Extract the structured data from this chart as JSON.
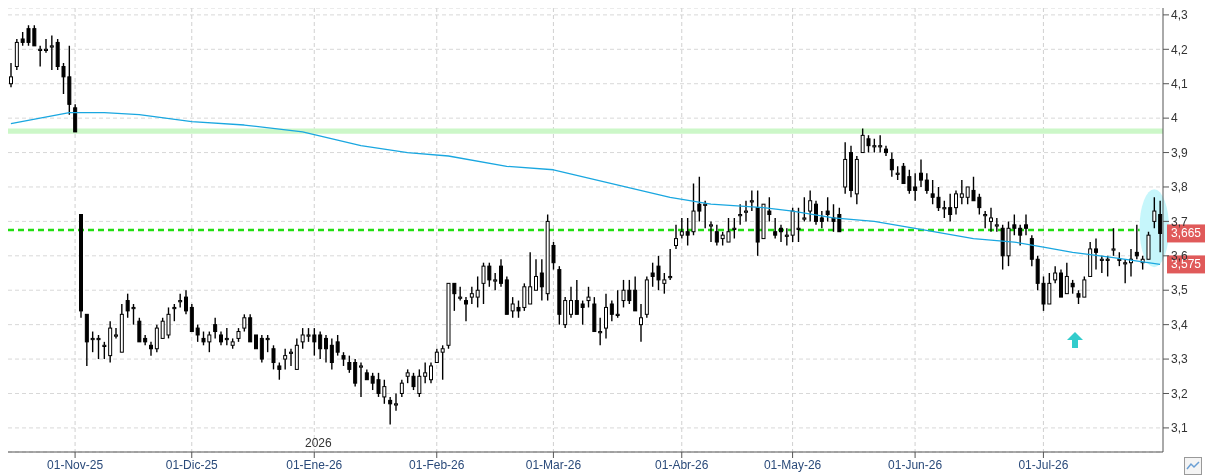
{
  "chart_data": {
    "type": "candlestick",
    "categories": [
      null,
      null,
      null,
      null,
      null,
      null,
      null,
      null,
      null,
      null,
      null,
      "01-Nov-25",
      null,
      null,
      null,
      null,
      null,
      null,
      null,
      null,
      null,
      null,
      null,
      null,
      null,
      null,
      null,
      null,
      null,
      null,
      null,
      "01-Dic-25",
      null,
      null,
      null,
      null,
      null,
      null,
      null,
      null,
      null,
      null,
      null,
      null,
      null,
      null,
      null,
      null,
      null,
      null,
      null,
      null,
      "01-Ene-26",
      null,
      null,
      null,
      null,
      null,
      null,
      null,
      null,
      null,
      null,
      null,
      null,
      null,
      null,
      null,
      null,
      null,
      null,
      null,
      null,
      "01-Feb-26",
      null,
      null,
      null,
      null,
      null,
      null,
      null,
      null,
      null,
      null,
      null,
      null,
      null,
      null,
      null,
      null,
      null,
      null,
      null,
      "01-Mar-26",
      null,
      null,
      null,
      null,
      null,
      null,
      null,
      null,
      null,
      null,
      null,
      null,
      null,
      null,
      null,
      null,
      null,
      null,
      null,
      null,
      null,
      "01-Abr-26",
      null,
      null,
      null,
      null,
      null,
      null,
      null,
      null,
      null,
      null,
      null,
      null,
      null,
      null,
      null,
      null,
      null,
      null,
      "01-May-26",
      null,
      null,
      null,
      null,
      null,
      null,
      null,
      null,
      null,
      null,
      null,
      null,
      null,
      null,
      null,
      null,
      null,
      null,
      null,
      null,
      "01-Jun-26",
      null,
      null,
      null,
      null,
      null,
      null,
      null,
      null,
      null,
      null,
      null,
      null,
      null,
      null,
      null,
      null,
      null,
      null,
      null,
      null,
      null,
      "01-Jul-26",
      null,
      null,
      null,
      null,
      null,
      null,
      null,
      null,
      null,
      null,
      null,
      null,
      null,
      null,
      null,
      null,
      null,
      null,
      null,
      null
    ],
    "color": "#000000",
    "ohlc": [
      [
        4.1,
        4.16,
        4.09,
        4.12
      ],
      [
        4.15,
        4.23,
        4.14,
        4.22
      ],
      [
        4.23,
        4.25,
        4.21,
        4.22
      ],
      [
        4.26,
        4.27,
        4.21,
        4.22
      ],
      [
        4.26,
        4.27,
        4.21,
        4.21
      ],
      [
        4.2,
        4.21,
        4.15,
        4.2
      ],
      [
        4.2,
        4.23,
        4.19,
        4.2
      ],
      [
        4.21,
        4.24,
        4.14,
        4.21
      ],
      [
        4.22,
        4.23,
        4.14,
        4.15
      ],
      [
        4.15,
        4.16,
        4.07,
        4.12
      ],
      [
        4.12,
        4.21,
        4.01,
        4.04
      ],
      [
        4.03,
        4.04,
        3.96,
        3.96
      ],
      [
        3.72,
        3.72,
        3.42,
        3.44
      ],
      [
        3.43,
        3.43,
        3.28,
        3.35
      ],
      [
        3.36,
        3.38,
        3.32,
        3.36
      ],
      [
        3.36,
        3.37,
        3.3,
        3.36
      ],
      [
        3.34,
        3.35,
        3.3,
        3.34
      ],
      [
        3.31,
        3.41,
        3.29,
        3.39
      ],
      [
        3.37,
        3.39,
        3.36,
        3.37
      ],
      [
        3.32,
        3.46,
        3.32,
        3.43
      ],
      [
        3.47,
        3.49,
        3.42,
        3.44
      ],
      [
        3.45,
        3.46,
        3.4,
        3.45
      ],
      [
        3.41,
        3.42,
        3.35,
        3.35
      ],
      [
        3.36,
        3.37,
        3.34,
        3.35
      ],
      [
        3.34,
        3.35,
        3.31,
        3.33
      ],
      [
        3.33,
        3.4,
        3.32,
        3.39
      ],
      [
        3.36,
        3.42,
        3.36,
        3.41
      ],
      [
        3.37,
        3.45,
        3.36,
        3.43
      ],
      [
        3.45,
        3.46,
        3.41,
        3.45
      ],
      [
        3.47,
        3.49,
        3.45,
        3.47
      ],
      [
        3.48,
        3.5,
        3.43,
        3.44
      ],
      [
        3.45,
        3.46,
        3.38,
        3.38
      ],
      [
        3.39,
        3.4,
        3.35,
        3.37
      ],
      [
        3.36,
        3.38,
        3.34,
        3.35
      ],
      [
        3.35,
        3.38,
        3.32,
        3.37
      ],
      [
        3.4,
        3.42,
        3.36,
        3.38
      ],
      [
        3.37,
        3.38,
        3.34,
        3.35
      ],
      [
        3.36,
        3.39,
        3.34,
        3.36
      ],
      [
        3.34,
        3.36,
        3.33,
        3.35
      ],
      [
        3.36,
        3.39,
        3.35,
        3.38
      ],
      [
        3.39,
        3.43,
        3.38,
        3.42
      ],
      [
        3.42,
        3.43,
        3.35,
        3.35
      ],
      [
        3.37,
        3.37,
        3.33,
        3.33
      ],
      [
        3.36,
        3.37,
        3.29,
        3.3
      ],
      [
        3.36,
        3.37,
        3.32,
        3.36
      ],
      [
        3.33,
        3.34,
        3.27,
        3.29
      ],
      [
        3.28,
        3.29,
        3.24,
        3.27
      ],
      [
        3.3,
        3.33,
        3.27,
        3.31
      ],
      [
        3.32,
        3.33,
        3.28,
        3.32
      ],
      [
        3.27,
        3.36,
        3.27,
        3.34
      ],
      [
        3.35,
        3.39,
        3.33,
        3.37
      ],
      [
        3.37,
        3.39,
        3.35,
        3.37
      ],
      [
        3.37,
        3.39,
        3.31,
        3.35
      ],
      [
        3.37,
        3.38,
        3.3,
        3.33
      ],
      [
        3.36,
        3.37,
        3.29,
        3.33
      ],
      [
        3.34,
        3.36,
        3.27,
        3.29
      ],
      [
        3.35,
        3.37,
        3.31,
        3.32
      ],
      [
        3.31,
        3.32,
        3.28,
        3.3
      ],
      [
        3.29,
        3.31,
        3.26,
        3.27
      ],
      [
        3.29,
        3.3,
        3.22,
        3.23
      ],
      [
        3.28,
        3.29,
        3.19,
        3.28
      ],
      [
        3.26,
        3.27,
        3.24,
        3.24
      ],
      [
        3.25,
        3.26,
        3.21,
        3.23
      ],
      [
        3.24,
        3.26,
        3.19,
        3.2
      ],
      [
        3.19,
        3.24,
        3.17,
        3.22
      ],
      [
        3.18,
        3.19,
        3.11,
        3.17
      ],
      [
        3.17,
        3.2,
        3.15,
        3.17
      ],
      [
        3.2,
        3.24,
        3.19,
        3.23
      ],
      [
        3.25,
        3.27,
        3.23,
        3.26
      ],
      [
        3.25,
        3.26,
        3.21,
        3.22
      ],
      [
        3.2,
        3.27,
        3.19,
        3.25
      ],
      [
        3.25,
        3.29,
        3.23,
        3.26
      ],
      [
        3.24,
        3.29,
        3.23,
        3.28
      ],
      [
        3.29,
        3.33,
        3.29,
        3.32
      ],
      [
        3.32,
        3.34,
        3.24,
        3.33
      ],
      [
        3.34,
        3.52,
        3.33,
        3.52
      ],
      [
        3.52,
        3.52,
        3.44,
        3.49
      ],
      [
        3.48,
        3.51,
        3.47,
        3.48
      ],
      [
        3.47,
        3.48,
        3.41,
        3.46
      ],
      [
        3.48,
        3.51,
        3.46,
        3.49
      ],
      [
        3.48,
        3.54,
        3.45,
        3.5
      ],
      [
        3.52,
        3.58,
        3.46,
        3.57
      ],
      [
        3.57,
        3.58,
        3.51,
        3.53
      ],
      [
        3.53,
        3.55,
        3.5,
        3.53
      ],
      [
        3.57,
        3.59,
        3.51,
        3.52
      ],
      [
        3.53,
        3.54,
        3.43,
        3.43
      ],
      [
        3.44,
        3.48,
        3.42,
        3.46
      ],
      [
        3.45,
        3.47,
        3.42,
        3.44
      ],
      [
        3.45,
        3.52,
        3.44,
        3.51
      ],
      [
        3.46,
        3.61,
        3.46,
        3.51
      ],
      [
        3.5,
        3.59,
        3.5,
        3.54
      ],
      [
        3.55,
        3.59,
        3.47,
        3.51
      ],
      [
        3.49,
        3.72,
        3.47,
        3.7
      ],
      [
        3.63,
        3.64,
        3.56,
        3.58
      ],
      [
        3.56,
        3.57,
        3.4,
        3.43
      ],
      [
        3.4,
        3.48,
        3.39,
        3.47
      ],
      [
        3.43,
        3.51,
        3.42,
        3.47
      ],
      [
        3.47,
        3.53,
        3.43,
        3.43
      ],
      [
        3.46,
        3.47,
        3.4,
        3.45
      ],
      [
        3.47,
        3.51,
        3.45,
        3.48
      ],
      [
        3.46,
        3.48,
        3.38,
        3.38
      ],
      [
        3.38,
        3.42,
        3.34,
        3.38
      ],
      [
        3.39,
        3.49,
        3.36,
        3.45
      ],
      [
        3.46,
        3.47,
        3.41,
        3.43
      ],
      [
        3.43,
        3.5,
        3.42,
        3.43
      ],
      [
        3.47,
        3.53,
        3.45,
        3.5
      ],
      [
        3.5,
        3.53,
        3.46,
        3.47
      ],
      [
        3.5,
        3.54,
        3.44,
        3.44
      ],
      [
        3.4,
        3.46,
        3.35,
        3.42
      ],
      [
        3.43,
        3.54,
        3.42,
        3.53
      ],
      [
        3.55,
        3.58,
        3.51,
        3.54
      ],
      [
        3.57,
        3.6,
        3.5,
        3.53
      ],
      [
        3.52,
        3.55,
        3.49,
        3.53
      ],
      [
        3.54,
        3.62,
        3.53,
        3.54
      ],
      [
        3.63,
        3.69,
        3.62,
        3.65
      ],
      [
        3.66,
        3.71,
        3.65,
        3.67
      ],
      [
        3.67,
        3.71,
        3.63,
        3.66
      ],
      [
        3.67,
        3.81,
        3.66,
        3.73
      ],
      [
        3.75,
        3.83,
        3.7,
        3.73
      ],
      [
        3.75,
        3.76,
        3.68,
        3.75
      ],
      [
        3.69,
        3.7,
        3.64,
        3.69
      ],
      [
        3.67,
        3.69,
        3.63,
        3.64
      ],
      [
        3.65,
        3.67,
        3.63,
        3.66
      ],
      [
        3.64,
        3.71,
        3.64,
        3.67
      ],
      [
        3.68,
        3.71,
        3.65,
        3.68
      ],
      [
        3.72,
        3.75,
        3.69,
        3.72
      ],
      [
        3.73,
        3.76,
        3.7,
        3.73
      ],
      [
        3.76,
        3.79,
        3.73,
        3.76
      ],
      [
        3.74,
        3.79,
        3.6,
        3.64
      ],
      [
        3.65,
        3.75,
        3.65,
        3.75
      ],
      [
        3.73,
        3.77,
        3.7,
        3.72
      ],
      [
        3.67,
        3.71,
        3.65,
        3.66
      ],
      [
        3.68,
        3.69,
        3.64,
        3.67
      ],
      [
        3.66,
        3.68,
        3.63,
        3.66
      ],
      [
        3.66,
        3.74,
        3.64,
        3.73
      ],
      [
        3.68,
        3.74,
        3.64,
        3.68
      ],
      [
        3.71,
        3.77,
        3.7,
        3.71
      ],
      [
        3.73,
        3.79,
        3.7,
        3.76
      ],
      [
        3.75,
        3.76,
        3.69,
        3.7
      ],
      [
        3.71,
        3.73,
        3.68,
        3.7
      ],
      [
        3.73,
        3.77,
        3.7,
        3.72
      ],
      [
        3.71,
        3.75,
        3.67,
        3.7
      ],
      [
        3.72,
        3.74,
        3.67,
        3.67
      ],
      [
        3.8,
        3.93,
        3.78,
        3.88
      ],
      [
        3.9,
        3.92,
        3.77,
        3.79
      ],
      [
        3.78,
        3.89,
        3.75,
        3.88
      ],
      [
        3.9,
        3.97,
        3.9,
        3.95
      ],
      [
        3.94,
        3.95,
        3.9,
        3.92
      ],
      [
        3.92,
        3.94,
        3.9,
        3.92
      ],
      [
        3.92,
        3.95,
        3.9,
        3.92
      ],
      [
        3.91,
        3.92,
        3.89,
        3.9
      ],
      [
        3.88,
        3.9,
        3.83,
        3.85
      ],
      [
        3.84,
        3.86,
        3.82,
        3.84
      ],
      [
        3.86,
        3.87,
        3.81,
        3.81
      ],
      [
        3.83,
        3.85,
        3.78,
        3.79
      ],
      [
        3.8,
        3.84,
        3.76,
        3.79
      ],
      [
        3.84,
        3.88,
        3.8,
        3.82
      ],
      [
        3.82,
        3.84,
        3.78,
        3.79
      ],
      [
        3.78,
        3.82,
        3.75,
        3.77
      ],
      [
        3.77,
        3.8,
        3.73,
        3.74
      ],
      [
        3.74,
        3.76,
        3.71,
        3.74
      ],
      [
        3.74,
        3.78,
        3.7,
        3.72
      ],
      [
        3.74,
        3.79,
        3.72,
        3.78
      ],
      [
        3.77,
        3.82,
        3.75,
        3.78
      ],
      [
        3.77,
        3.8,
        3.75,
        3.8
      ],
      [
        3.79,
        3.83,
        3.76,
        3.76
      ],
      [
        3.77,
        3.78,
        3.72,
        3.74
      ],
      [
        3.72,
        3.73,
        3.68,
        3.72
      ],
      [
        3.7,
        3.74,
        3.67,
        3.71
      ],
      [
        3.69,
        3.71,
        3.67,
        3.69
      ],
      [
        3.68,
        3.69,
        3.56,
        3.6
      ],
      [
        3.6,
        3.7,
        3.57,
        3.68
      ],
      [
        3.69,
        3.72,
        3.66,
        3.68
      ],
      [
        3.68,
        3.69,
        3.63,
        3.66
      ],
      [
        3.69,
        3.72,
        3.66,
        3.68
      ],
      [
        3.65,
        3.66,
        3.57,
        3.59
      ],
      [
        3.59,
        3.6,
        3.5,
        3.52
      ],
      [
        3.52,
        3.54,
        3.44,
        3.46
      ],
      [
        3.46,
        3.55,
        3.46,
        3.52
      ],
      [
        3.53,
        3.57,
        3.52,
        3.55
      ],
      [
        3.55,
        3.56,
        3.48,
        3.48
      ],
      [
        3.49,
        3.58,
        3.49,
        3.54
      ],
      [
        3.52,
        3.53,
        3.49,
        3.51
      ],
      [
        3.49,
        3.5,
        3.46,
        3.48
      ],
      [
        3.48,
        3.54,
        3.48,
        3.53
      ],
      [
        3.54,
        3.64,
        3.54,
        3.62
      ],
      [
        3.62,
        3.65,
        3.56,
        3.61
      ],
      [
        3.59,
        3.6,
        3.55,
        3.59
      ],
      [
        3.59,
        3.6,
        3.54,
        3.59
      ],
      [
        3.62,
        3.68,
        3.6,
        3.62
      ],
      [
        3.59,
        3.61,
        3.57,
        3.59
      ],
      [
        3.58,
        3.59,
        3.52,
        3.58
      ],
      [
        3.58,
        3.62,
        3.54,
        3.59
      ],
      [
        3.61,
        3.69,
        3.59,
        3.6
      ],
      [
        3.58,
        3.6,
        3.56,
        3.59
      ],
      [
        3.59,
        3.67,
        3.59,
        3.66
      ],
      [
        3.7,
        3.77,
        3.68,
        3.73
      ],
      [
        3.72,
        3.76,
        3.61,
        3.665
      ]
    ],
    "series": [
      {
        "type": "line",
        "color": "#1aa7e0",
        "values": [
          3.984,
          null,
          null,
          null,
          null,
          4.0,
          null,
          null,
          null,
          null,
          4.016,
          null,
          null,
          null,
          null,
          null,
          4.016,
          null,
          null,
          null,
          null,
          null,
          4.01,
          null,
          null,
          null,
          null,
          null,
          null,
          null,
          null,
          3.99,
          null,
          null,
          null,
          null,
          null,
          null,
          null,
          null,
          3.98,
          null,
          null,
          null,
          null,
          null,
          null,
          null,
          null,
          null,
          3.96,
          null,
          null,
          null,
          null,
          null,
          null,
          null,
          null,
          null,
          3.92,
          null,
          null,
          null,
          null,
          null,
          null,
          null,
          3.9,
          null,
          null,
          null,
          null,
          null,
          null,
          3.89,
          null,
          null,
          null,
          null,
          null,
          null,
          null,
          null,
          null,
          3.86,
          null,
          null,
          null,
          null,
          null,
          null,
          null,
          3.85,
          null,
          null,
          null,
          null,
          null,
          null,
          null,
          null,
          null,
          3.81,
          null,
          null,
          null,
          null,
          null,
          null,
          null,
          null,
          null,
          3.77,
          null,
          null,
          null,
          null,
          null,
          null,
          3.75,
          null,
          null,
          null,
          null,
          null,
          null,
          null,
          null,
          3.74,
          null,
          null,
          null,
          null,
          3.73,
          null,
          null,
          null,
          null,
          null,
          null,
          3.71,
          null,
          null,
          null,
          null,
          null,
          null,
          3.7,
          null,
          null,
          null,
          null,
          null,
          null,
          3.68,
          null,
          null,
          null,
          null,
          null,
          null,
          null,
          null,
          null,
          3.65,
          null,
          null,
          null,
          null,
          null,
          null,
          3.64,
          null,
          null,
          null,
          null,
          3.625,
          null,
          null,
          null,
          null,
          3.61,
          null,
          null,
          null,
          null,
          null,
          null,
          3.595,
          null,
          null,
          null,
          null,
          null,
          null,
          null,
          3.575
        ]
      }
    ],
    "ylim": [
      3.03,
      4.32
    ],
    "yticks": [
      {
        "value": 3.1,
        "label": "3,1"
      },
      {
        "value": 3.2,
        "label": "3,2"
      },
      {
        "value": 3.3,
        "label": "3,3"
      },
      {
        "value": 3.4,
        "label": "3,4"
      },
      {
        "value": 3.5,
        "label": "3,5"
      },
      {
        "value": 3.6,
        "label": "3,6"
      },
      {
        "value": 3.7,
        "label": "3,7"
      },
      {
        "value": 3.8,
        "label": "3,8"
      },
      {
        "value": 3.9,
        "label": "3,9"
      },
      {
        "value": 4.0,
        "label": "4"
      },
      {
        "value": 4.1,
        "label": "4,1"
      },
      {
        "value": 4.2,
        "label": "4,2"
      },
      {
        "value": 4.3,
        "label": "4,3"
      }
    ],
    "grid": true,
    "bands": [
      {
        "axis": "y",
        "from": 3.955,
        "to": 3.97,
        "color": "#ccf7c8"
      }
    ],
    "ref_lines": [
      {
        "axis": "y",
        "value": 3.675,
        "color": "#22dd11",
        "line_style": "dashed"
      }
    ],
    "annotations": [
      "2026",
      "3,665",
      "3,575"
    ]
  }
}
